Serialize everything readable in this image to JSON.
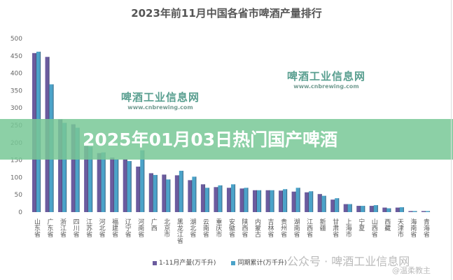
{
  "chart_data": {
    "type": "bar",
    "title": "2023年前11月中国各省市啤酒产量排行",
    "ylim": [
      0,
      500
    ],
    "yticks": [
      0,
      50,
      100,
      150,
      200,
      250,
      300,
      350,
      400,
      450,
      500
    ],
    "grid": false,
    "legend_position": "bottom",
    "categories": [
      "山东省",
      "广东省",
      "浙江省",
      "四川省",
      "江苏省",
      "河北省",
      "福建省",
      "辽宁省",
      "河南省",
      "广西",
      "北京市",
      "黑龙江省",
      "湖北省",
      "云南省",
      "重庆市",
      "安徽省",
      "陕西省",
      "内蒙古",
      "吉林省",
      "贵州省",
      "湖南省",
      "江西省",
      "新疆",
      "甘肃省",
      "上海市",
      "宁夏",
      "山西省",
      "西藏",
      "天津市",
      "海南省",
      "青海省"
    ],
    "series": [
      {
        "name": "1-11月产量(万千升)",
        "color": "#6b5b9e",
        "values": [
          458,
          447,
          267,
          253,
          190,
          170,
          157,
          152,
          131,
          112,
          108,
          106,
          92,
          80,
          72,
          70,
          68,
          63,
          63,
          62,
          59,
          57,
          52,
          36,
          23,
          18,
          18,
          13,
          13,
          3,
          3
        ]
      },
      {
        "name": "同期累计(万千升)",
        "color": "#4ba3c9",
        "values": [
          462,
          368,
          257,
          243,
          188,
          172,
          152,
          147,
          178,
          107,
          94,
          119,
          102,
          70,
          77,
          80,
          70,
          63,
          63,
          66,
          70,
          60,
          47,
          40,
          23,
          18,
          20,
          11,
          14,
          3,
          3
        ]
      }
    ]
  },
  "watermarks": {
    "site_name": "啤酒工业信息网",
    "site_url": "www.cnbrewing.com",
    "bottom": "公众号 · 啤酒工业信息网",
    "weibo": "@温柔教主"
  },
  "banner": {
    "text": "2025年01月03日热门国产啤酒",
    "color": "#78c896"
  }
}
